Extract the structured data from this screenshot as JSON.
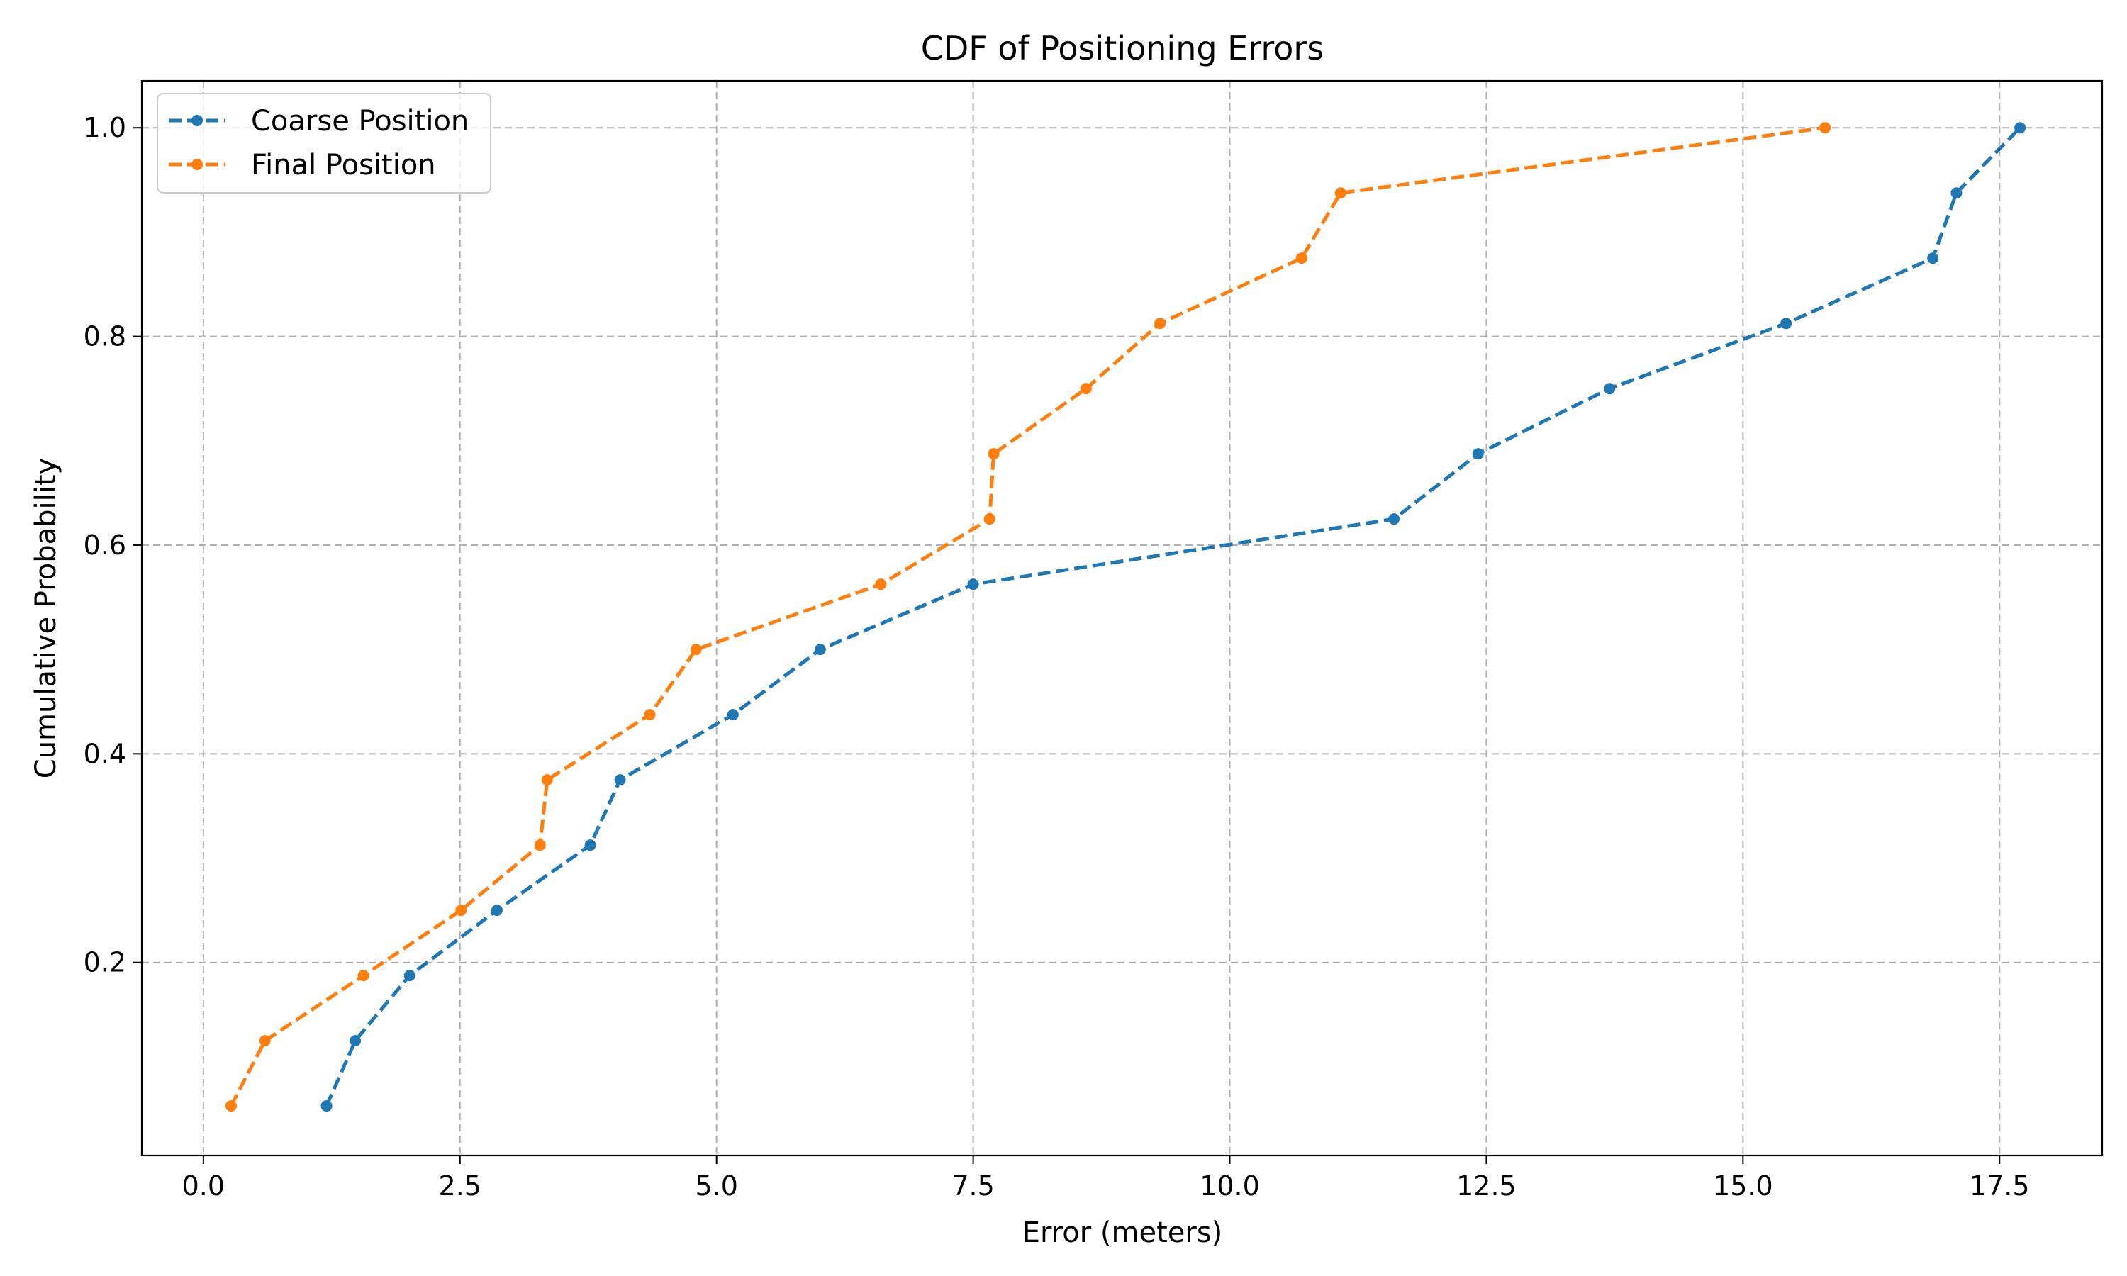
{
  "chart_data": {
    "type": "line",
    "title": "CDF of Positioning Errors",
    "xlabel": "Error (meters)",
    "ylabel": "Cumulative Probability",
    "xlim": [
      -0.6,
      18.5
    ],
    "ylim": [
      0.015,
      1.045
    ],
    "xticks": [
      0.0,
      2.5,
      5.0,
      7.5,
      10.0,
      12.5,
      15.0,
      17.5
    ],
    "xtick_labels": [
      "0.0",
      "2.5",
      "5.0",
      "7.5",
      "10.0",
      "12.5",
      "15.0",
      "17.5"
    ],
    "yticks": [
      0.2,
      0.4,
      0.6,
      0.8,
      1.0
    ],
    "ytick_labels": [
      "0.2",
      "0.4",
      "0.6",
      "0.8",
      "1.0"
    ],
    "grid": true,
    "legend_position": "top-left",
    "series": [
      {
        "name": "Coarse Position",
        "color": "#1f77b4",
        "linestyle": "dashed",
        "marker": "circle",
        "x": [
          1.2,
          1.48,
          2.01,
          2.86,
          3.77,
          4.06,
          5.16,
          6.01,
          7.5,
          11.6,
          12.42,
          13.7,
          15.42,
          16.85,
          17.08,
          17.7
        ],
        "y": [
          0.0625,
          0.125,
          0.1875,
          0.25,
          0.3125,
          0.375,
          0.4375,
          0.5,
          0.5625,
          0.625,
          0.6875,
          0.75,
          0.8125,
          0.875,
          0.9375,
          1.0
        ]
      },
      {
        "name": "Final Position",
        "color": "#ff7f0e",
        "linestyle": "dashed",
        "marker": "circle",
        "x": [
          0.27,
          0.6,
          1.56,
          2.51,
          3.28,
          3.35,
          4.35,
          4.8,
          6.6,
          7.66,
          7.7,
          8.6,
          9.32,
          10.7,
          11.08,
          15.8
        ],
        "y": [
          0.0625,
          0.125,
          0.1875,
          0.25,
          0.3125,
          0.375,
          0.4375,
          0.5,
          0.5625,
          0.625,
          0.6875,
          0.75,
          0.8125,
          0.875,
          0.9375,
          1.0
        ]
      }
    ]
  }
}
